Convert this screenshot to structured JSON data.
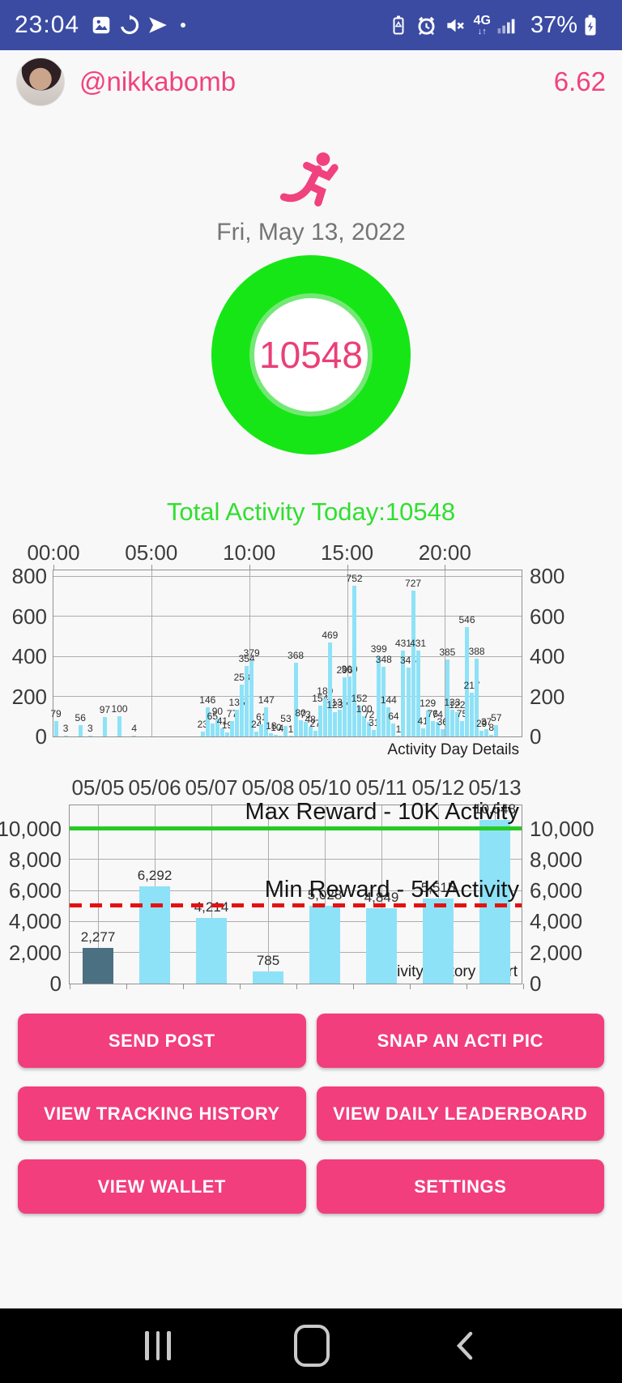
{
  "colors": {
    "status_bar_bg": "#3B4BA2",
    "accent_pink": "#F0427E",
    "button_pink": "#F23E7C",
    "donut_green": "#16E616",
    "donut_inner_ring": "#74E874",
    "total_green": "#30DF30",
    "bar_blue": "#8EE2F7",
    "bar_dark": "#4A7082",
    "max_line_green": "#25CB25",
    "min_line_red": "#E31212"
  },
  "status_bar": {
    "time": "23:04",
    "left_icons": [
      "gallery-icon",
      "data-saver-icon",
      "send-icon",
      "notification-dot"
    ],
    "right_icons": [
      "battery-saver-icon",
      "alarm-icon",
      "mute-icon",
      "network-4g",
      "signal-bars",
      "battery-charging-icon"
    ],
    "network": "4G",
    "battery": "37%"
  },
  "header": {
    "username": "@nikkabomb",
    "score": "6.62"
  },
  "today": {
    "date": "Fri, May 13, 2022",
    "total": "10548",
    "summary": "Total Activity Today:10548"
  },
  "chart_data": [
    {
      "type": "bar",
      "title": "Activity Day Details",
      "x_axis_position": "top",
      "x_ticks": [
        {
          "label": "00:00",
          "hour": 0
        },
        {
          "label": "05:00",
          "hour": 5
        },
        {
          "label": "10:00",
          "hour": 10
        },
        {
          "label": "15:00",
          "hour": 15
        },
        {
          "label": "20:00",
          "hour": 20
        }
      ],
      "y_ticks": [
        0,
        200,
        400,
        600,
        800
      ],
      "ylim": [
        0,
        830
      ],
      "x_slots_per_day": 96,
      "slots": [
        0,
        2,
        5,
        7,
        10,
        13,
        16,
        30,
        31,
        32,
        33,
        34,
        35,
        36,
        37,
        38,
        39,
        40,
        41,
        42,
        43,
        44,
        45,
        46,
        47,
        48,
        49,
        50,
        51,
        52,
        53,
        54,
        55,
        56,
        57,
        58,
        59,
        60,
        61,
        62,
        63,
        64,
        65,
        66,
        67,
        68,
        69,
        70,
        71,
        72,
        73,
        74,
        75,
        76,
        77,
        78,
        79,
        80,
        81,
        82,
        83,
        84,
        85,
        86,
        87,
        88,
        89,
        90
      ],
      "values": [
        79,
        3,
        56,
        3,
        97,
        100,
        4,
        23,
        146,
        65,
        90,
        41,
        19,
        77,
        135,
        258,
        354,
        379,
        24,
        61,
        147,
        18,
        10,
        4,
        53,
        1,
        368,
        80,
        73,
        48,
        27,
        154,
        189,
        469,
        123,
        135,
        296,
        300,
        752,
        152,
        100,
        72,
        31,
        399,
        348,
        144,
        64,
        1,
        431,
        345,
        727,
        431,
        41,
        129,
        76,
        74,
        36,
        385,
        133,
        122,
        75,
        546,
        217,
        388,
        29,
        37,
        8,
        57
      ]
    },
    {
      "type": "bar",
      "title": "Activity History Chart",
      "x_axis_position": "top",
      "categories": [
        "05/05",
        "05/06",
        "05/07",
        "05/08",
        "05/10",
        "05/11",
        "05/12",
        "05/13"
      ],
      "values": [
        2277,
        6292,
        4214,
        785,
        5028,
        4849,
        5515,
        10548
      ],
      "value_labels": [
        "2,277",
        "6,292",
        "4,214",
        "785",
        "5,028",
        "4,849",
        "5,515",
        "10,548"
      ],
      "bar_colors": [
        "#4A7082",
        "#8EE2F7",
        "#8EE2F7",
        "#8EE2F7",
        "#8EE2F7",
        "#8EE2F7",
        "#8EE2F7",
        "#8EE2F7"
      ],
      "y_ticks": [
        0,
        2000,
        4000,
        6000,
        8000,
        10000
      ],
      "y_tick_labels": [
        "0",
        "2,000",
        "4,000",
        "6,000",
        "8,000",
        "10,000"
      ],
      "ylim": [
        0,
        11500
      ],
      "max_line": {
        "value": 10000,
        "label": "Max Reward - 10K Activity",
        "color": "#25CB25",
        "style": "solid"
      },
      "min_line": {
        "value": 5000,
        "label": "Min Reward - 5K Activity",
        "color": "#E31212",
        "style": "dashed"
      }
    }
  ],
  "buttons": [
    {
      "label": "SEND POST"
    },
    {
      "label": "SNAP AN ACTI PIC"
    },
    {
      "label": "VIEW TRACKING HISTORY"
    },
    {
      "label": "VIEW DAILY LEADERBOARD"
    },
    {
      "label": "VIEW WALLET"
    },
    {
      "label": "SETTINGS"
    }
  ],
  "nav_bar": {
    "icons": [
      "recents",
      "home",
      "back"
    ]
  }
}
